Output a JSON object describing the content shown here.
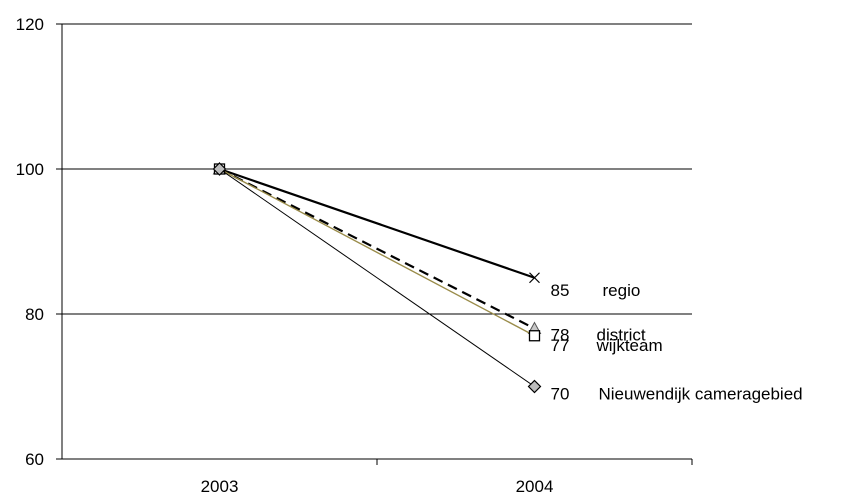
{
  "chart_data": {
    "type": "line",
    "categories": [
      "2003",
      "2004"
    ],
    "ylim": [
      60,
      120
    ],
    "yticks": [
      60,
      80,
      100,
      120
    ],
    "grid": true,
    "series": [
      {
        "name": "regio",
        "values": [
          100,
          85
        ],
        "end_label": "85",
        "color": "#000000",
        "style": "solid-thick",
        "marker": "x"
      },
      {
        "name": "district",
        "values": [
          100,
          78
        ],
        "end_label": "78",
        "color": "#000000",
        "style": "dashed",
        "marker": "triangle"
      },
      {
        "name": "wijkteam",
        "values": [
          100,
          77
        ],
        "end_label": "77",
        "color": "#9a8c4a",
        "style": "solid",
        "marker": "square"
      },
      {
        "name": "Nieuwendijk cameragebied",
        "values": [
          100,
          70
        ],
        "end_label": "70",
        "color": "#000000",
        "style": "solid-thin",
        "marker": "diamond"
      }
    ]
  }
}
